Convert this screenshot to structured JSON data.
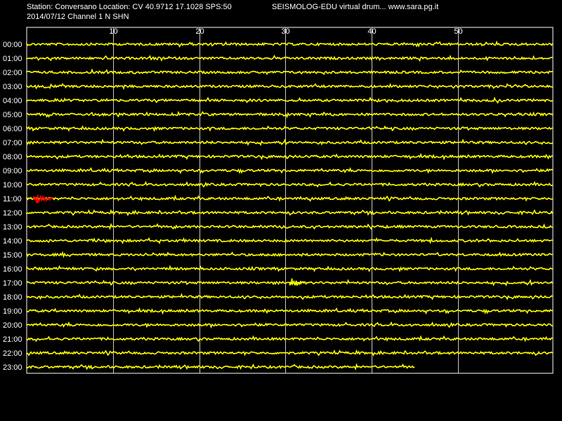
{
  "header": {
    "station_line": "Station: Conversano Location: CV 40.9712 17.1028 SPS:50",
    "date_line": "2014/07/12  Channel 1 N SHN",
    "title": "SEISMOLOG-EDU virtual drum... www.sara.pg.it"
  },
  "colors": {
    "background": "#000000",
    "trace": "#ffff00",
    "event": "#ff0000",
    "grid": "#ffffff",
    "text": "#ffffff"
  },
  "chart_data": {
    "type": "line",
    "title": "SEISMOLOG-EDU virtual drum... www.sara.pg.it",
    "xlabel": "",
    "ylabel": "",
    "x_unit": "minute",
    "xlim": [
      0,
      61
    ],
    "x_ticks": [
      10,
      20,
      30,
      40,
      50
    ],
    "grid": true,
    "rows": [
      {
        "label": "00:00",
        "end_minute": 61
      },
      {
        "label": "01:00",
        "end_minute": 61
      },
      {
        "label": "02:00",
        "end_minute": 61
      },
      {
        "label": "03:00",
        "end_minute": 61
      },
      {
        "label": "04:00",
        "end_minute": 61
      },
      {
        "label": "05:00",
        "end_minute": 61
      },
      {
        "label": "06:00",
        "end_minute": 61
      },
      {
        "label": "07:00",
        "end_minute": 61
      },
      {
        "label": "08:00",
        "end_minute": 61
      },
      {
        "label": "09:00",
        "end_minute": 61
      },
      {
        "label": "10:00",
        "end_minute": 61
      },
      {
        "label": "11:00",
        "end_minute": 61
      },
      {
        "label": "12:00",
        "end_minute": 61
      },
      {
        "label": "13:00",
        "end_minute": 61
      },
      {
        "label": "14:00",
        "end_minute": 61
      },
      {
        "label": "15:00",
        "end_minute": 61
      },
      {
        "label": "16:00",
        "end_minute": 61
      },
      {
        "label": "17:00",
        "end_minute": 61
      },
      {
        "label": "18:00",
        "end_minute": 61
      },
      {
        "label": "19:00",
        "end_minute": 61
      },
      {
        "label": "20:00",
        "end_minute": 61
      },
      {
        "label": "21:00",
        "end_minute": 61
      },
      {
        "label": "22:00",
        "end_minute": 61
      },
      {
        "label": "23:00",
        "end_minute": 45
      }
    ],
    "events": [
      {
        "row": "11:00",
        "start_minute": 0.8,
        "end_minute": 3.0,
        "color": "#ff0000"
      },
      {
        "row": "17:00",
        "start_minute": 30.5,
        "end_minute": 32.2,
        "color": "#ffff00"
      }
    ]
  }
}
